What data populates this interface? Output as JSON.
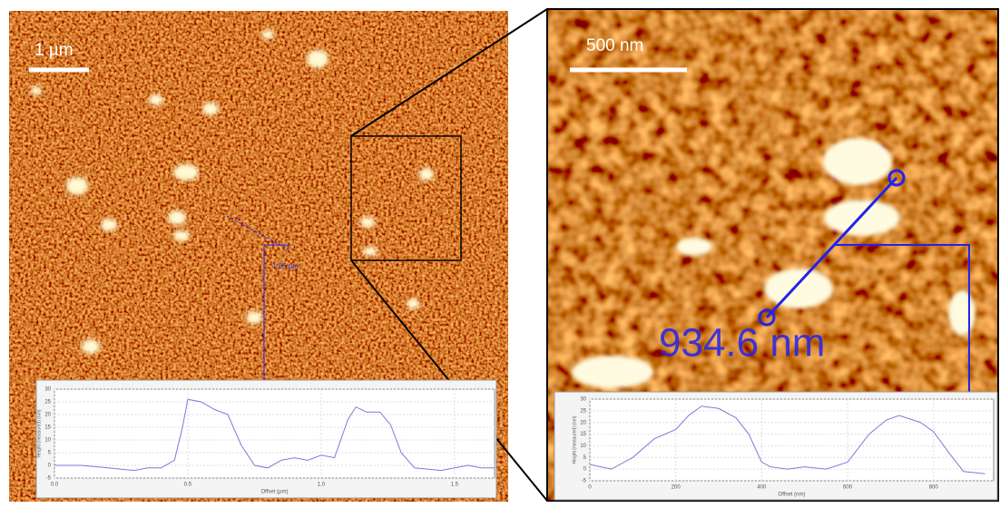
{
  "panels": {
    "left_scale_bar": "1 µm",
    "left_measurement": "1.05 µm",
    "right_scale_bar": "500 nm",
    "right_measurement": "934.6 nm"
  },
  "chart_data": [
    {
      "type": "line",
      "xlabel": "Offset (µm)",
      "ylabel": "Height (measured) (nm)",
      "x": [
        0,
        0.1,
        0.2,
        0.3,
        0.35,
        0.4,
        0.45,
        0.48,
        0.5,
        0.55,
        0.6,
        0.65,
        0.7,
        0.75,
        0.8,
        0.85,
        0.9,
        0.95,
        1.0,
        1.05,
        1.1,
        1.13,
        1.17,
        1.22,
        1.26,
        1.3,
        1.35,
        1.45,
        1.5,
        1.55,
        1.6,
        1.65
      ],
      "series": [
        {
          "color": "#7b7bd6",
          "values": [
            0,
            0,
            -1,
            -2,
            -1,
            -1,
            2,
            15,
            26,
            25,
            22,
            20,
            8,
            0,
            -1,
            2,
            3,
            2,
            4,
            3,
            18,
            23,
            21,
            21,
            16,
            5,
            -1,
            -2,
            -1,
            0,
            -1,
            -1
          ]
        }
      ],
      "xlim": [
        0,
        1.65
      ],
      "ylim": [
        -5,
        30
      ],
      "xticks": [
        {
          "value": 0,
          "label": "0.0"
        },
        0.5,
        {
          "value": 1,
          "label": "1.0"
        },
        1.5
      ],
      "yticks": [
        -5,
        0,
        5,
        10,
        15,
        20,
        25,
        30
      ],
      "grid": true
    },
    {
      "type": "line",
      "xlabel": "Offset (nm)",
      "ylabel": "Height (measured) (nm)",
      "x": [
        0,
        50,
        100,
        150,
        200,
        230,
        260,
        300,
        340,
        370,
        400,
        420,
        460,
        500,
        550,
        600,
        650,
        690,
        720,
        770,
        800,
        840,
        870,
        920
      ],
      "series": [
        {
          "color": "#7b7bd6",
          "values": [
            2,
            0,
            5,
            13,
            17,
            23,
            27,
            26,
            22,
            15,
            3,
            1,
            0,
            1,
            0,
            3,
            15,
            21,
            23,
            20,
            16,
            6,
            -1,
            -2
          ]
        }
      ],
      "xlim": [
        0,
        940
      ],
      "ylim": [
        -5,
        30
      ],
      "xticks": [
        0,
        200,
        400,
        600,
        800
      ],
      "yticks": [
        -5,
        0,
        5,
        10,
        15,
        20,
        25,
        30
      ],
      "grid": true
    }
  ]
}
